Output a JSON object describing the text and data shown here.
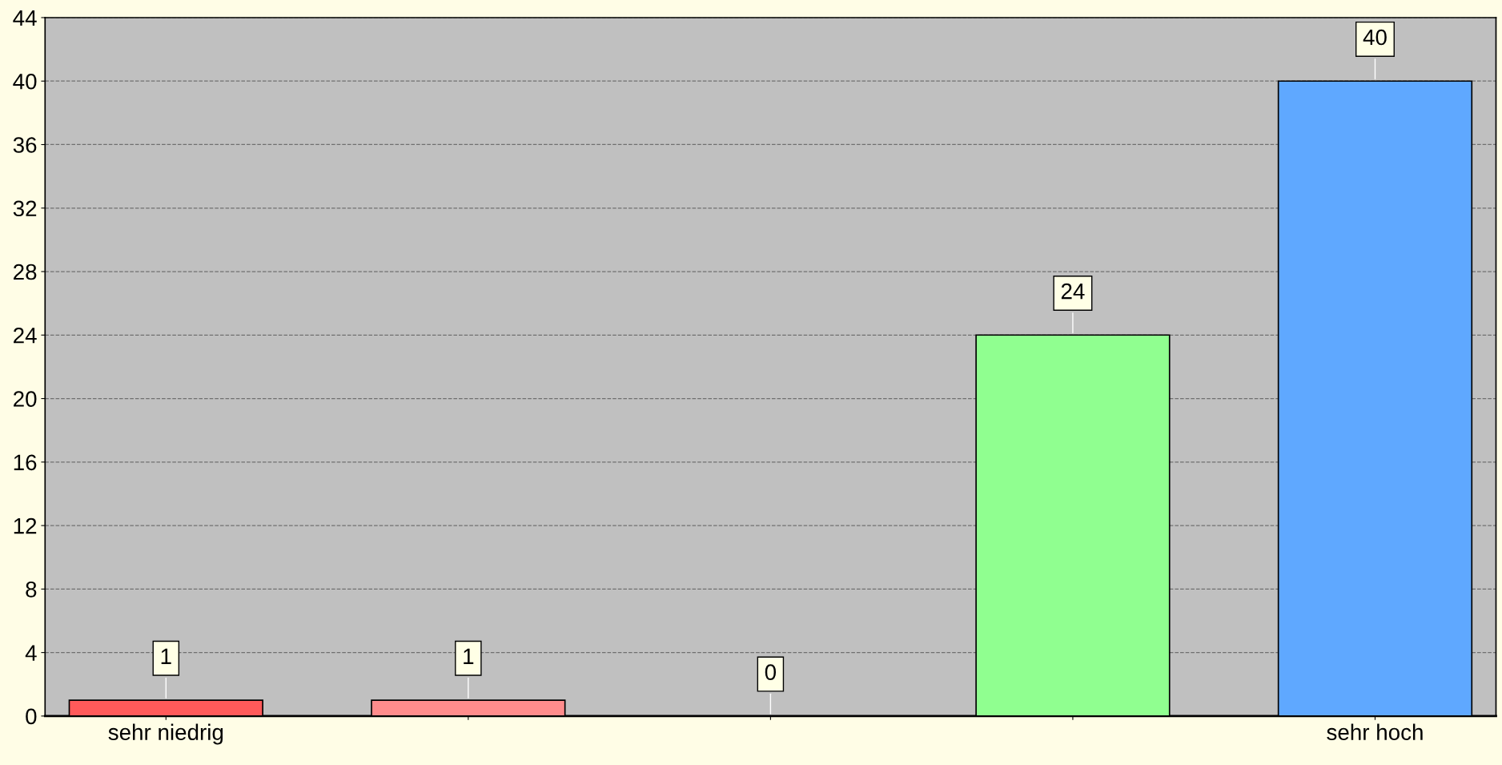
{
  "chart_data": {
    "type": "bar",
    "categories": [
      "sehr niedrig",
      null,
      null,
      null,
      "sehr hoch"
    ],
    "values": [
      1,
      1,
      0,
      24,
      40
    ],
    "colors": [
      "#ff5a5a",
      "#ff8c8c",
      null,
      "#90ff90",
      "#5fa8ff"
    ],
    "ylim": [
      0,
      44
    ],
    "yticks": [
      0,
      4,
      8,
      12,
      16,
      20,
      24,
      28,
      32,
      36,
      40,
      44
    ],
    "grid": "y",
    "data_labels": true
  }
}
